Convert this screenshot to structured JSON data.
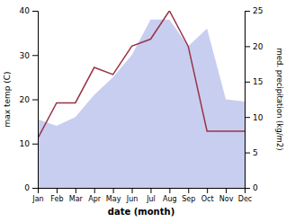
{
  "chart_data": {
    "type": "area",
    "categories": [
      "Jan",
      "Feb",
      "Mar",
      "Apr",
      "May",
      "Jun",
      "Jul",
      "Aug",
      "Sep",
      "Oct",
      "Nov",
      "Dec"
    ],
    "xlabel": "date (month)",
    "ylabel": "max temp (C)",
    "y2label": "med. precipitation (kg/m2)",
    "series": [
      {
        "type": "area",
        "color": "#c8cef0",
        "values": [
          15.5,
          14.0,
          16.0,
          21.0,
          25.0,
          30.0,
          38.0,
          38.0,
          32.0,
          36.0,
          20.0,
          19.5
        ]
      },
      {
        "type": "line",
        "axis": "y2",
        "color": "#993344",
        "values": [
          7.0,
          12.0,
          12.0,
          17.0,
          16.0,
          20.0,
          21.0,
          25.0,
          20.0,
          8.0,
          8.0,
          8.0
        ]
      }
    ],
    "ylim": [
      0,
      40
    ],
    "yticks": [
      0,
      10,
      20,
      30,
      40
    ],
    "y2lim": [
      0,
      25
    ],
    "y2ticks": [
      0,
      5,
      10,
      15,
      20,
      25
    ]
  }
}
